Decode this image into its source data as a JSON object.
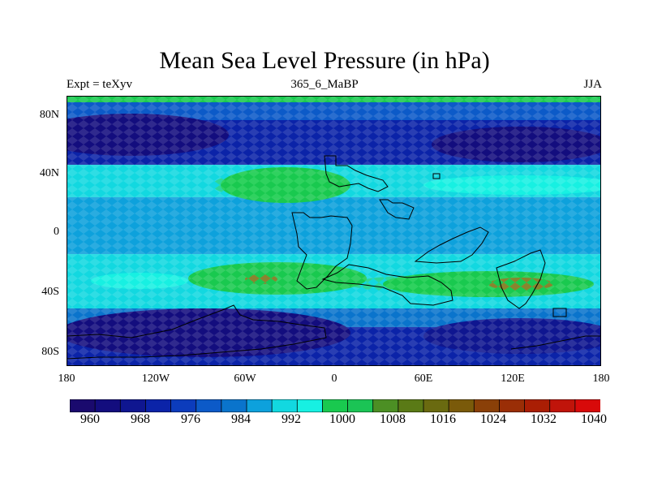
{
  "figure": {
    "title": "Mean Sea Level Pressure (in hPa)",
    "left_label": "Expt = teXyv",
    "center_label": "365_6_MaBP",
    "right_label": "JJA"
  },
  "axes": {
    "y_ticks": [
      "80N",
      "40N",
      "0",
      "40S",
      "80S"
    ],
    "y_values": [
      80,
      40,
      0,
      -40,
      -80
    ],
    "x_ticks": [
      "180",
      "120W",
      "60W",
      "0",
      "60E",
      "120E",
      "180"
    ],
    "x_values": [
      -180,
      -120,
      -60,
      0,
      60,
      120,
      180
    ],
    "lat_range": [
      -90,
      90
    ],
    "lon_range": [
      -180,
      180
    ]
  },
  "colorbar": {
    "labels": [
      "960",
      "968",
      "976",
      "984",
      "992",
      "1000",
      "1008",
      "1016",
      "1024",
      "1032",
      "1040"
    ],
    "colors": [
      "#1a0a6e",
      "#130d7e",
      "#0f1690",
      "#0b23a8",
      "#0c3cbc",
      "#0c5ac8",
      "#0a74cc",
      "#0da1dc",
      "#12d8e0",
      "#17f0e2",
      "#19c94f",
      "#1bc455",
      "#4c8f24",
      "#5a7a16",
      "#6a6a10",
      "#7a5a0a",
      "#8a4008",
      "#9a2e06",
      "#aa1e04",
      "#c0140a",
      "#d80a0a"
    ]
  }
}
